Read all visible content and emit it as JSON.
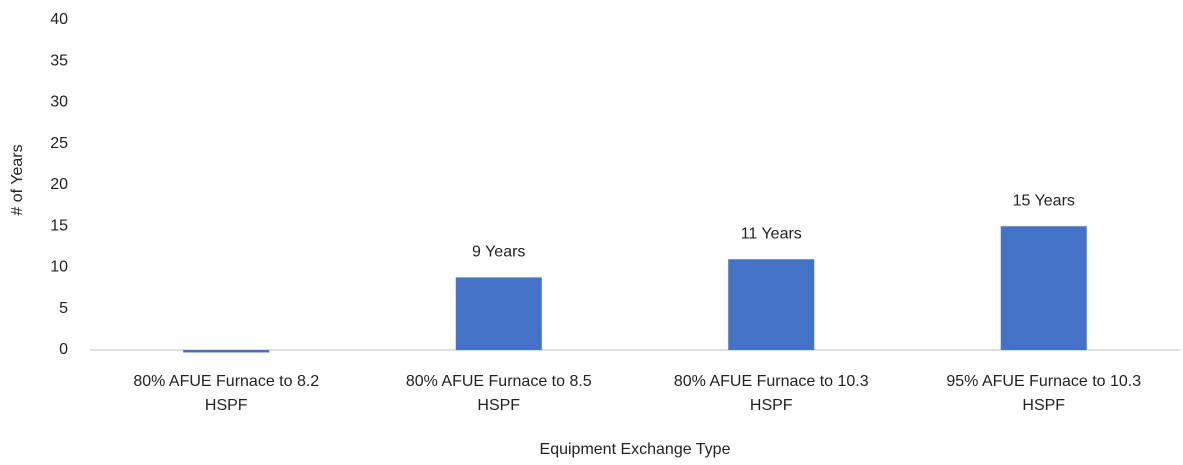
{
  "chart_data": {
    "type": "bar",
    "categories": [
      "80% AFUE Furnace to 8.2 HSPF",
      "80% AFUE Furnace to 8.5 HSPF",
      "80% AFUE Furnace to 10.3 HSPF",
      "95% AFUE Furnace to 10.3 HSPF"
    ],
    "values": [
      -0.3,
      8.8,
      11,
      15
    ],
    "value_labels": [
      null,
      "9 Years",
      "11 Years",
      "15 Years"
    ],
    "color": "#4472c4",
    "xlabel": "Equipment Exchange Type",
    "ylabel": "# of Years",
    "ylim": [
      0,
      40
    ],
    "yticks": [
      0,
      5,
      10,
      15,
      20,
      25,
      30,
      35,
      40
    ],
    "grid": false
  }
}
